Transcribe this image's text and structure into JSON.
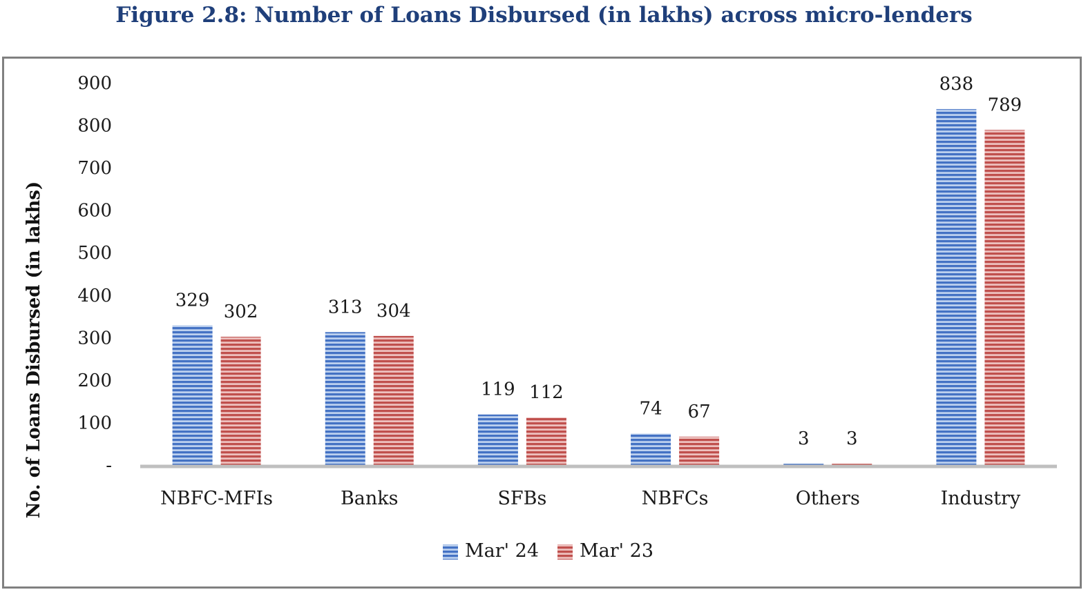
{
  "title": "Figure 2.8: Number of Loans Disbursed (in lakhs) across micro-lenders",
  "chart_data": {
    "type": "bar",
    "title": "",
    "xlabel": "",
    "ylabel": "No. of Loans Disbursed (in lakhs)",
    "categories": [
      "NBFC-MFIs",
      "Banks",
      "SFBs",
      "NBFCs",
      "Others",
      "Industry"
    ],
    "series": [
      {
        "name": "Mar' 24",
        "values": [
          329,
          313,
          119,
          74,
          3,
          838
        ],
        "color": "#4472C4"
      },
      {
        "name": "Mar' 23",
        "values": [
          302,
          304,
          112,
          67,
          3,
          789
        ],
        "color": "#C0504D"
      }
    ],
    "yticks": [
      0,
      100,
      200,
      300,
      400,
      500,
      600,
      700,
      800,
      900
    ],
    "ytick_labels": [
      "-",
      "100",
      "200",
      "300",
      "400",
      "500",
      "600",
      "700",
      "800",
      "900"
    ],
    "ylim": [
      0,
      900
    ],
    "grid": false,
    "legend_position": "bottom",
    "bar_style": "horizontal-striped"
  }
}
